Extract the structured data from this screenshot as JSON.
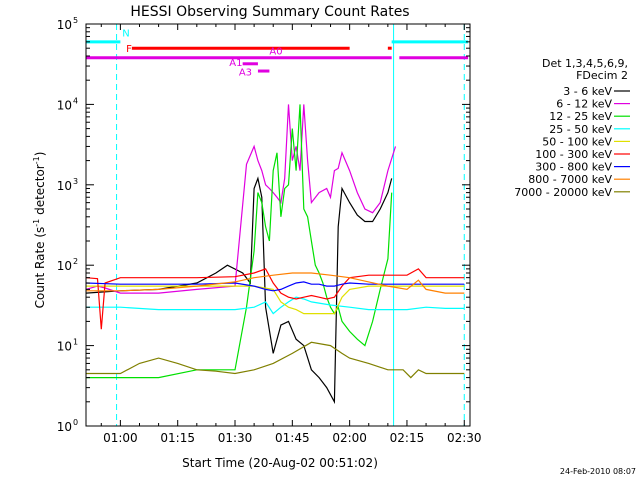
{
  "chart_data": {
    "type": "line",
    "title": "HESSI Observing Summary Count Rates",
    "xlabel": "Start Time (20-Aug-02 00:51:02)",
    "ylabel_main": "Count Rate (s",
    "ylabel_sup1": "-1",
    "ylabel_mid": " detector",
    "ylabel_sup2": "-1",
    "ylabel_end": ")",
    "yscale": "log",
    "xlim_minutes": [
      51.0,
      151.5
    ],
    "ylim": [
      1,
      100000
    ],
    "x_ticks": [
      {
        "minute": 60,
        "label": "01:00"
      },
      {
        "minute": 75,
        "label": "01:15"
      },
      {
        "minute": 90,
        "label": "01:30"
      },
      {
        "minute": 105,
        "label": "01:45"
      },
      {
        "minute": 120,
        "label": "02:00"
      },
      {
        "minute": 135,
        "label": "02:15"
      },
      {
        "minute": 150,
        "label": "02:30"
      }
    ],
    "y_ticks": [
      {
        "value": 1,
        "base": "10",
        "exp": "0"
      },
      {
        "value": 10,
        "base": "10",
        "exp": "1"
      },
      {
        "value": 100,
        "base": "10",
        "exp": "2"
      },
      {
        "value": 1000,
        "base": "10",
        "exp": "3"
      },
      {
        "value": 10000,
        "base": "10",
        "exp": "4"
      },
      {
        "value": 100000,
        "base": "10",
        "exp": "5"
      }
    ],
    "legend_title_1": "Det 1,3,4,5,6,9,",
    "legend_title_2": "FDecim 2",
    "series": [
      {
        "name": "3 - 6 keV",
        "color": "#000000",
        "points": [
          [
            51,
            45
          ],
          [
            60,
            48
          ],
          [
            70,
            50
          ],
          [
            80,
            60
          ],
          [
            85,
            80
          ],
          [
            88,
            100
          ],
          [
            92,
            80
          ],
          [
            94,
            60
          ],
          [
            95,
            900
          ],
          [
            96,
            1200
          ],
          [
            97,
            700
          ],
          [
            98,
            30
          ],
          [
            100,
            8
          ],
          [
            102,
            18
          ],
          [
            104,
            20
          ],
          [
            106,
            12
          ],
          [
            108,
            10
          ],
          [
            110,
            5
          ],
          [
            112,
            4
          ],
          [
            114,
            3
          ],
          [
            116,
            2
          ],
          [
            117,
            300
          ],
          [
            118,
            900
          ],
          [
            120,
            600
          ],
          [
            122,
            420
          ],
          [
            124,
            350
          ],
          [
            126,
            350
          ],
          [
            128,
            500
          ],
          [
            130,
            800
          ],
          [
            131,
            1200
          ]
        ]
      },
      {
        "name": "6 - 12 keV",
        "color": "#e000e0",
        "points": [
          [
            51,
            50
          ],
          [
            54,
            55
          ],
          [
            56,
            52
          ],
          [
            60,
            45
          ],
          [
            70,
            45
          ],
          [
            80,
            50
          ],
          [
            90,
            55
          ],
          [
            93,
            1800
          ],
          [
            95,
            3000
          ],
          [
            96,
            2000
          ],
          [
            97,
            1500
          ],
          [
            98,
            1000
          ],
          [
            99,
            900
          ],
          [
            100,
            800
          ],
          [
            101,
            700
          ],
          [
            102,
            600
          ],
          [
            103,
            1200
          ],
          [
            104,
            10000
          ],
          [
            105,
            2000
          ],
          [
            106,
            3000
          ],
          [
            107,
            1500
          ],
          [
            108,
            10000
          ],
          [
            109,
            2000
          ],
          [
            110,
            600
          ],
          [
            112,
            800
          ],
          [
            114,
            900
          ],
          [
            115,
            700
          ],
          [
            116,
            1500
          ],
          [
            117,
            1600
          ],
          [
            118,
            2500
          ],
          [
            120,
            1500
          ],
          [
            122,
            800
          ],
          [
            124,
            500
          ],
          [
            126,
            450
          ],
          [
            128,
            600
          ],
          [
            130,
            1500
          ],
          [
            132,
            3000
          ]
        ]
      },
      {
        "name": "12 - 25 keV",
        "color": "#00e000",
        "points": [
          [
            51,
            4
          ],
          [
            60,
            4
          ],
          [
            70,
            4
          ],
          [
            80,
            5
          ],
          [
            85,
            5
          ],
          [
            90,
            5
          ],
          [
            93,
            30
          ],
          [
            95,
            150
          ],
          [
            96,
            800
          ],
          [
            97,
            600
          ],
          [
            98,
            300
          ],
          [
            99,
            200
          ],
          [
            100,
            1500
          ],
          [
            101,
            2500
          ],
          [
            102,
            400
          ],
          [
            103,
            900
          ],
          [
            104,
            1000
          ],
          [
            105,
            5000
          ],
          [
            106,
            1500
          ],
          [
            107,
            10000
          ],
          [
            108,
            500
          ],
          [
            109,
            400
          ],
          [
            110,
            200
          ],
          [
            111,
            100
          ],
          [
            112,
            80
          ],
          [
            113,
            60
          ],
          [
            114,
            40
          ],
          [
            115,
            30
          ],
          [
            116,
            25
          ],
          [
            117,
            30
          ],
          [
            118,
            20
          ],
          [
            120,
            15
          ],
          [
            122,
            12
          ],
          [
            124,
            10
          ],
          [
            126,
            20
          ],
          [
            128,
            50
          ],
          [
            130,
            120
          ],
          [
            131,
            800
          ]
        ]
      },
      {
        "name": "25 - 50 keV",
        "color": "#00ffff",
        "points": [
          [
            51,
            30
          ],
          [
            60,
            30
          ],
          [
            70,
            28
          ],
          [
            80,
            28
          ],
          [
            90,
            28
          ],
          [
            95,
            30
          ],
          [
            98,
            35
          ],
          [
            100,
            25
          ],
          [
            102,
            30
          ],
          [
            104,
            35
          ],
          [
            106,
            40
          ],
          [
            108,
            38
          ],
          [
            110,
            35
          ],
          [
            115,
            32
          ],
          [
            120,
            30
          ],
          [
            125,
            28
          ],
          [
            130,
            28
          ],
          [
            135,
            28
          ],
          [
            140,
            30
          ],
          [
            145,
            29
          ],
          [
            150,
            29
          ]
        ]
      },
      {
        "name": "50 - 100 keV",
        "color": "#e0e000",
        "points": [
          [
            51,
            55
          ],
          [
            60,
            55
          ],
          [
            70,
            55
          ],
          [
            80,
            55
          ],
          [
            90,
            55
          ],
          [
            95,
            55
          ],
          [
            100,
            50
          ],
          [
            102,
            35
          ],
          [
            104,
            30
          ],
          [
            106,
            28
          ],
          [
            108,
            25
          ],
          [
            110,
            25
          ],
          [
            112,
            25
          ],
          [
            114,
            25
          ],
          [
            116,
            25
          ],
          [
            118,
            40
          ],
          [
            120,
            50
          ],
          [
            125,
            55
          ],
          [
            130,
            55
          ],
          [
            135,
            55
          ],
          [
            140,
            55
          ],
          [
            145,
            55
          ],
          [
            150,
            55
          ]
        ]
      },
      {
        "name": "100 - 300 keV",
        "color": "#ff0000",
        "points": [
          [
            51,
            70
          ],
          [
            54,
            68
          ],
          [
            55,
            16
          ],
          [
            56,
            60
          ],
          [
            60,
            70
          ],
          [
            70,
            70
          ],
          [
            80,
            70
          ],
          [
            90,
            72
          ],
          [
            95,
            80
          ],
          [
            98,
            90
          ],
          [
            100,
            60
          ],
          [
            102,
            45
          ],
          [
            104,
            40
          ],
          [
            106,
            38
          ],
          [
            108,
            40
          ],
          [
            110,
            42
          ],
          [
            112,
            40
          ],
          [
            114,
            38
          ],
          [
            116,
            40
          ],
          [
            118,
            55
          ],
          [
            120,
            70
          ],
          [
            125,
            75
          ],
          [
            130,
            75
          ],
          [
            135,
            75
          ],
          [
            138,
            90
          ],
          [
            140,
            70
          ],
          [
            145,
            70
          ],
          [
            150,
            70
          ]
        ]
      },
      {
        "name": "300 - 800 keV",
        "color": "#0000ff",
        "points": [
          [
            51,
            60
          ],
          [
            60,
            58
          ],
          [
            70,
            58
          ],
          [
            80,
            58
          ],
          [
            90,
            60
          ],
          [
            95,
            55
          ],
          [
            98,
            50
          ],
          [
            100,
            48
          ],
          [
            102,
            50
          ],
          [
            104,
            55
          ],
          [
            106,
            60
          ],
          [
            108,
            62
          ],
          [
            110,
            58
          ],
          [
            112,
            58
          ],
          [
            114,
            55
          ],
          [
            116,
            55
          ],
          [
            118,
            58
          ],
          [
            120,
            60
          ],
          [
            125,
            58
          ],
          [
            130,
            58
          ],
          [
            135,
            58
          ],
          [
            140,
            58
          ],
          [
            145,
            58
          ],
          [
            150,
            58
          ]
        ]
      },
      {
        "name": "800 - 7000 keV",
        "color": "#ff8000",
        "points": [
          [
            51,
            48
          ],
          [
            60,
            48
          ],
          [
            70,
            50
          ],
          [
            80,
            55
          ],
          [
            90,
            62
          ],
          [
            95,
            70
          ],
          [
            100,
            75
          ],
          [
            105,
            80
          ],
          [
            110,
            80
          ],
          [
            115,
            75
          ],
          [
            120,
            70
          ],
          [
            125,
            62
          ],
          [
            130,
            55
          ],
          [
            135,
            50
          ],
          [
            138,
            65
          ],
          [
            140,
            50
          ],
          [
            145,
            45
          ],
          [
            150,
            45
          ]
        ]
      },
      {
        "name": "7000 - 20000 keV",
        "color": "#808000",
        "points": [
          [
            51,
            4.5
          ],
          [
            60,
            4.5
          ],
          [
            65,
            6
          ],
          [
            70,
            7
          ],
          [
            75,
            6
          ],
          [
            80,
            5
          ],
          [
            85,
            4.8
          ],
          [
            90,
            4.5
          ],
          [
            95,
            5
          ],
          [
            100,
            6
          ],
          [
            105,
            8
          ],
          [
            110,
            11
          ],
          [
            115,
            10
          ],
          [
            118,
            8
          ],
          [
            120,
            7
          ],
          [
            125,
            6
          ],
          [
            130,
            5
          ],
          [
            134,
            5
          ],
          [
            136,
            4
          ],
          [
            138,
            5
          ],
          [
            140,
            4.5
          ],
          [
            145,
            4.5
          ],
          [
            150,
            4.5
          ]
        ]
      }
    ],
    "state_bars": [
      {
        "label": "N",
        "color": "#00ffff",
        "y": 60000,
        "segments": [
          [
            51,
            60
          ],
          [
            131,
            151
          ]
        ],
        "label_minute": 60.5,
        "label_y": 70000
      },
      {
        "label": "F",
        "color": "#ff0000",
        "y": 50000,
        "segments": [
          [
            63,
            120
          ],
          [
            130,
            131
          ]
        ],
        "label_minute": 61.5,
        "label_y": 45000
      },
      {
        "label": "A0",
        "color": "#e000e0",
        "y": 38000,
        "segments": [
          [
            51,
            131
          ],
          [
            133,
            151
          ]
        ],
        "label_minute": 99,
        "label_y": 42000
      },
      {
        "label": "A1",
        "color": "#e000e0",
        "y": 32000,
        "segments": [
          [
            92,
            96
          ]
        ],
        "label_minute": 88.5,
        "label_y": 30000
      },
      {
        "label": "A3",
        "color": "#e000e0",
        "y": 26000,
        "segments": [
          [
            96,
            99
          ]
        ],
        "label_minute": 91,
        "label_y": 23000
      }
    ],
    "markers_dashed_minutes": [
      59,
      150
    ],
    "markers_solid_minutes": [
      131.5
    ],
    "timestamp": "24-Feb-2010 08:07"
  }
}
